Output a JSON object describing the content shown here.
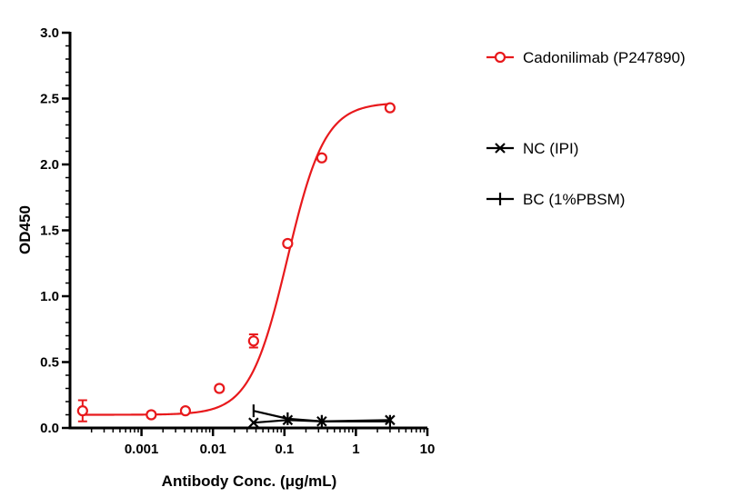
{
  "chart_data": {
    "type": "scatter",
    "xlabel": "Antibody Conc. (μg/mL)",
    "ylabel": "OD450",
    "x_scale": "log",
    "xlim": [
      0.0001,
      10
    ],
    "ylim": [
      0,
      3
    ],
    "x_ticks": [
      {
        "value": 0.001,
        "label": "0.001"
      },
      {
        "value": 0.01,
        "label": "0.01"
      },
      {
        "value": 0.1,
        "label": "0.1"
      },
      {
        "value": 1,
        "label": "1"
      },
      {
        "value": 10,
        "label": "10"
      }
    ],
    "y_ticks": [
      {
        "value": 0,
        "label": "0.0"
      },
      {
        "value": 0.5,
        "label": "0.5"
      },
      {
        "value": 1,
        "label": "1.0"
      },
      {
        "value": 1.5,
        "label": "1.5"
      },
      {
        "value": 2,
        "label": "2.0"
      },
      {
        "value": 2.5,
        "label": "2.5"
      },
      {
        "value": 3,
        "label": "3.0"
      }
    ],
    "grid": false,
    "legend_position": "right",
    "series": [
      {
        "name": "Cadonilimab (P247890)",
        "color": "#e8191c",
        "marker": "open-circle",
        "fit": "4PL sigmoid",
        "points": [
          {
            "x": 0.00015,
            "y": 0.13,
            "err": 0.08
          },
          {
            "x": 0.00137,
            "y": 0.1,
            "err": 0.02
          },
          {
            "x": 0.00412,
            "y": 0.13,
            "err": 0.02
          },
          {
            "x": 0.0123,
            "y": 0.3,
            "err": 0.02
          },
          {
            "x": 0.037,
            "y": 0.66,
            "err": 0.05
          },
          {
            "x": 0.111,
            "y": 1.4,
            "err": 0.02
          },
          {
            "x": 0.333,
            "y": 2.05,
            "err": 0.02
          },
          {
            "x": 3.0,
            "y": 2.43,
            "err": 0.02
          }
        ],
        "fit_params": {
          "bottom": 0.1,
          "top": 2.47,
          "ec50": 0.11,
          "hill": 1.65
        }
      },
      {
        "name": "NC (IPI)",
        "color": "#000000",
        "marker": "x",
        "points": [
          {
            "x": 0.037,
            "y": 0.04
          },
          {
            "x": 0.111,
            "y": 0.06
          },
          {
            "x": 0.333,
            "y": 0.05
          },
          {
            "x": 3.0,
            "y": 0.06
          }
        ]
      },
      {
        "name": "BC (1%PBSM)",
        "color": "#000000",
        "marker": "plus",
        "points": [
          {
            "x": 0.037,
            "y": 0.13
          },
          {
            "x": 0.111,
            "y": 0.07
          },
          {
            "x": 0.333,
            "y": 0.05
          },
          {
            "x": 3.0,
            "y": 0.05
          }
        ]
      }
    ]
  }
}
